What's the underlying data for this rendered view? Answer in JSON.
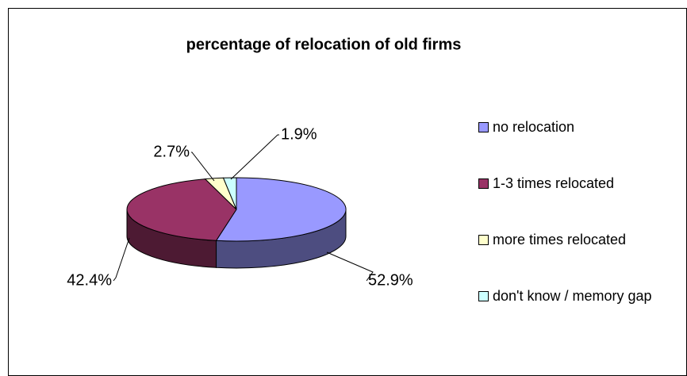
{
  "chart_data": {
    "type": "pie",
    "title": "percentage of relocation of old firms",
    "categories": [
      "no relocation",
      "1-3 times relocated",
      "more times relocated",
      "don't know / memory gap"
    ],
    "values": [
      52.9,
      42.4,
      2.7,
      1.9
    ],
    "value_labels": [
      "52.9%",
      "42.4%",
      "2.7%",
      "1.9%"
    ],
    "colors": [
      "#9999ff",
      "#993366",
      "#ffffcc",
      "#ccffff"
    ],
    "legend": "right"
  }
}
